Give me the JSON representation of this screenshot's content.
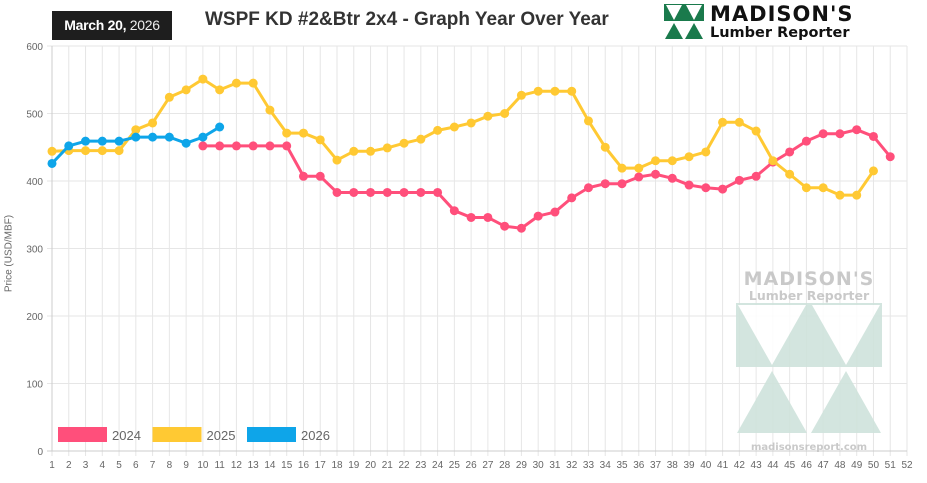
{
  "header": {
    "date_bold": "March 20,",
    "date_year": "2026",
    "title": "WSPF KD #2&Btr 2x4 - Graph Year Over Year"
  },
  "logo": {
    "line1": "MADISON'S",
    "line2": "Lumber Reporter",
    "url": "madisonsreport.com",
    "color": "#1a7a4c"
  },
  "chart_data": {
    "type": "line",
    "title": "WSPF KD #2&Btr 2x4 - Graph Year Over Year",
    "xlabel": "",
    "ylabel": "Price (USD/MBF)",
    "xlim": [
      1,
      52
    ],
    "ylim": [
      0,
      600
    ],
    "y_ticks": [
      0,
      100,
      200,
      300,
      400,
      500,
      600
    ],
    "grid": true,
    "legend_position": "bottom-left",
    "series": [
      {
        "name": "2024",
        "color": "#ff4f7b",
        "start_week": 10,
        "values": [
          452,
          452,
          452,
          452,
          452,
          452,
          407,
          407,
          383,
          383,
          383,
          383,
          383,
          383,
          383,
          356,
          346,
          346,
          333,
          330,
          348,
          354,
          375,
          390,
          396,
          396,
          406,
          410,
          404,
          394,
          390,
          388,
          401,
          407,
          428,
          443,
          459,
          470,
          470,
          476,
          466,
          436
        ]
      },
      {
        "name": "2025",
        "color": "#ffc933",
        "start_week": 1,
        "values": [
          444,
          445,
          445,
          445,
          445,
          476,
          486,
          524,
          535,
          551,
          535,
          545,
          545,
          505,
          471,
          471,
          461,
          431,
          444,
          444,
          449,
          456,
          462,
          475,
          480,
          486,
          496,
          500,
          527,
          533,
          533,
          533,
          489,
          450,
          419,
          419,
          430,
          430,
          436,
          443,
          487,
          487,
          474,
          430,
          410,
          390,
          390,
          379,
          379,
          415
        ]
      },
      {
        "name": "2026",
        "color": "#0ea5e9",
        "start_week": 1,
        "values": [
          426,
          452,
          459,
          459,
          459,
          465,
          465,
          465,
          456,
          465,
          480
        ]
      }
    ]
  }
}
